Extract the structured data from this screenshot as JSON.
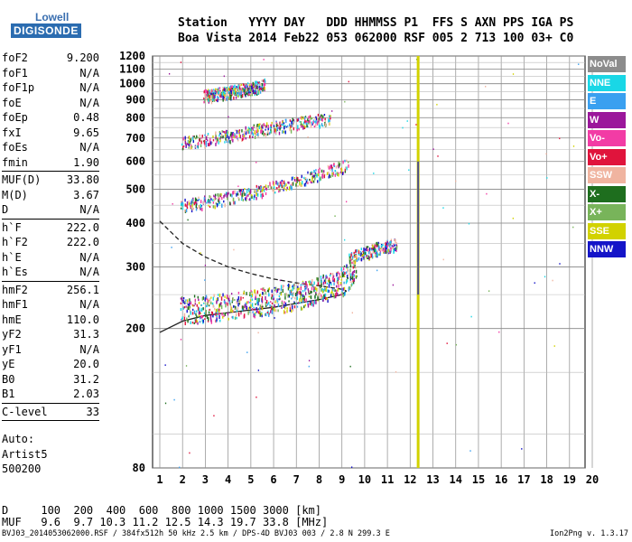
{
  "logo": {
    "line1": "Lowell",
    "line2": "DIGISONDE"
  },
  "header": {
    "row1": "Station   YYYY DAY   DDD HHMMSS P1  FFS S AXN PPS IGA PS",
    "row2": "Boa Vista 2014 Feb22 053 062000 RSF 005 2 713 100 03+ C0"
  },
  "params": [
    {
      "k": "foF2",
      "v": "9.200"
    },
    {
      "k": "foF1",
      "v": "N/A"
    },
    {
      "k": "foF1p",
      "v": "N/A"
    },
    {
      "k": "foE",
      "v": "N/A"
    },
    {
      "k": "foEp",
      "v": "0.48"
    },
    {
      "k": "fxI",
      "v": "9.65"
    },
    {
      "k": "foEs",
      "v": "N/A"
    },
    {
      "k": "fmin",
      "v": "1.90"
    },
    {
      "sep": true
    },
    {
      "k": "MUF(D)",
      "v": "33.80"
    },
    {
      "k": "M(D)",
      "v": "3.67"
    },
    {
      "k": "D",
      "v": "N/A"
    },
    {
      "sep": true
    },
    {
      "k": "h`F",
      "v": "222.0"
    },
    {
      "k": "h`F2",
      "v": "222.0"
    },
    {
      "k": "h`E",
      "v": "N/A"
    },
    {
      "k": "h`Es",
      "v": "N/A"
    },
    {
      "sep": true
    },
    {
      "k": "hmF2",
      "v": "256.1"
    },
    {
      "k": "hmF1",
      "v": "N/A"
    },
    {
      "k": "hmE",
      "v": "110.0"
    },
    {
      "k": "yF2",
      "v": "31.3"
    },
    {
      "k": "yF1",
      "v": "N/A"
    },
    {
      "k": "yE",
      "v": "20.0"
    },
    {
      "k": "B0",
      "v": "31.2"
    },
    {
      "k": "B1",
      "v": "2.03"
    },
    {
      "sep": true
    },
    {
      "k": "C-level",
      "v": "33"
    },
    {
      "sep": true
    }
  ],
  "auto": {
    "l1": "Auto:",
    "l2": "Artist5",
    "l3": "500200"
  },
  "muf_table": {
    "drow": "D     100  200  400  600  800 1000 1500 3000 [km]",
    "mrow": "MUF   9.6  9.7 10.3 11.2 12.5 14.3 19.7 33.8 [MHz]"
  },
  "footer": {
    "left": "BVJ03_2014053062000.RSF / 384fx512h 50 kHz 2.5 km / DPS-4D BVJ03 003 / 2.8 N 299.3 E",
    "right": "Ion2Png v. 1.3.17"
  },
  "legend": [
    {
      "label": "NoVal",
      "color": "#8c8c8c"
    },
    {
      "label": "NNE",
      "color": "#19d7e6"
    },
    {
      "label": "E",
      "color": "#3aa0f0"
    },
    {
      "label": "W",
      "color": "#9b179b"
    },
    {
      "label": "Vo-",
      "color": "#f23ca5"
    },
    {
      "label": "Vo+",
      "color": "#e0143c"
    },
    {
      "label": "SSW",
      "color": "#f0b4a0"
    },
    {
      "label": "X-",
      "color": "#1e6e1e"
    },
    {
      "label": "X+",
      "color": "#78b45a"
    },
    {
      "label": "SSE",
      "color": "#d2d200"
    },
    {
      "label": "NNW",
      "color": "#1414c8"
    }
  ],
  "chart_data": {
    "type": "scatter",
    "xlabel": "",
    "ylabel": "",
    "xlim": [
      1,
      20
    ],
    "ylim": [
      80,
      1200
    ],
    "x_ticks": [
      1,
      2,
      3,
      4,
      5,
      6,
      7,
      8,
      9,
      10,
      11,
      12,
      13,
      14,
      15,
      16,
      17,
      18,
      19,
      20
    ],
    "y_ticks": [
      80,
      200,
      300,
      400,
      500,
      600,
      700,
      800,
      900,
      1000,
      1100,
      1200
    ],
    "y_log": true,
    "grid": true,
    "traces": [
      {
        "name": "o-trace",
        "freq_mhz": [
          1.9,
          3,
          4,
          5,
          6,
          7,
          8,
          9,
          9.65
        ],
        "height_km": [
          228,
          230,
          234,
          238,
          243,
          250,
          260,
          275,
          300
        ]
      },
      {
        "name": "2nd-hop",
        "freq_mhz": [
          1.9,
          3,
          4,
          5,
          6,
          7,
          8,
          9.3
        ],
        "height_km": [
          450,
          462,
          475,
          490,
          510,
          530,
          555,
          590
        ]
      },
      {
        "name": "3rd-hop",
        "freq_mhz": [
          1.9,
          3,
          4,
          5,
          6,
          7,
          8.5
        ],
        "height_km": [
          680,
          695,
          715,
          735,
          755,
          775,
          800
        ]
      },
      {
        "name": "4th-hop",
        "freq_mhz": [
          2.9,
          4,
          5,
          5.6
        ],
        "height_km": [
          925,
          950,
          975,
          1000
        ]
      },
      {
        "name": "x-trace",
        "freq_mhz": [
          9.3,
          10,
          10.5,
          11,
          11.4
        ],
        "height_km": [
          320,
          330,
          340,
          345,
          350
        ]
      }
    ],
    "profile_solid": {
      "freq_mhz": [
        1,
        2,
        3,
        4,
        5,
        6,
        7,
        8,
        9,
        9.2
      ],
      "height_km": [
        195,
        210,
        218,
        222,
        226,
        230,
        236,
        242,
        250,
        256
      ]
    },
    "profile_dashed": {
      "freq_mhz": [
        1,
        2,
        3,
        4,
        5,
        6,
        7,
        8,
        9,
        9.2
      ],
      "height_km": [
        405,
        350,
        320,
        300,
        287,
        277,
        270,
        265,
        259,
        256
      ]
    },
    "vertical_band_mhz": 12.35
  }
}
